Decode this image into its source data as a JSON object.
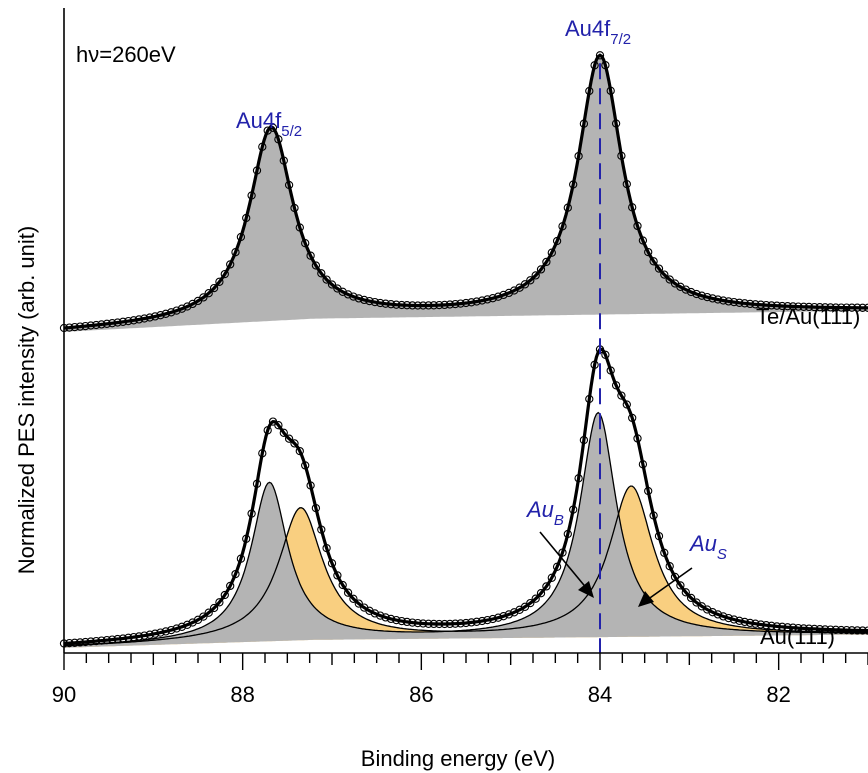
{
  "chart_data": {
    "type": "line",
    "xlabel": "Binding energy (eV)",
    "ylabel": "Normalized PES intensity (arb. unit)",
    "xlim": [
      90,
      81
    ],
    "x_reversed": true,
    "ylim": [
      0,
      2.45
    ],
    "major_ticks": [
      90,
      88,
      86,
      84,
      82
    ],
    "minor_tick_step": 0.25,
    "grid": false,
    "legend": "none",
    "photon_energy_label": "hν=260eV",
    "series": [
      {
        "name": "Te/Au(111)",
        "offset": 1.2,
        "background": [
          [
            90,
            0.02
          ],
          [
            87.2,
            0.07
          ],
          [
            81,
            0.1
          ]
        ],
        "peaks": [
          {
            "label": "Au4f5/2",
            "center": 87.68,
            "height": 0.73,
            "width": 0.3
          },
          {
            "label": "Au4f7/2",
            "center": 84.0,
            "height": 0.98,
            "width": 0.3
          }
        ]
      },
      {
        "name": "Au(111)",
        "offset": 0.0,
        "background": [
          [
            90,
            0.02
          ],
          [
            87.2,
            0.05
          ],
          [
            81,
            0.07
          ]
        ],
        "components": [
          {
            "label": "AuB",
            "peaks": [
              {
                "center": 87.7,
                "height": 0.6,
                "width": 0.25
              },
              {
                "center": 84.02,
                "height": 0.85,
                "width": 0.25
              }
            ]
          },
          {
            "label": "AuS",
            "peaks": [
              {
                "center": 87.35,
                "height": 0.5,
                "width": 0.3
              },
              {
                "center": 83.65,
                "height": 0.57,
                "width": 0.3
              }
            ]
          }
        ]
      }
    ],
    "reference_line_x": 84.0,
    "annotations": {
      "peak_5_2_main": "Au4f",
      "peak_5_2_sub": "5/2",
      "peak_7_2_main": "Au4f",
      "peak_7_2_sub": "7/2",
      "bulk_main": "Au",
      "bulk_sub": "B",
      "surface_main": "Au",
      "surface_sub": "S"
    },
    "colors": {
      "fit": "#000000",
      "bulk_fill": "#b4b4b4",
      "surface_fill": "#f9cf80",
      "reference_line": "#2222aa",
      "label_blue": "#2222aa"
    }
  }
}
